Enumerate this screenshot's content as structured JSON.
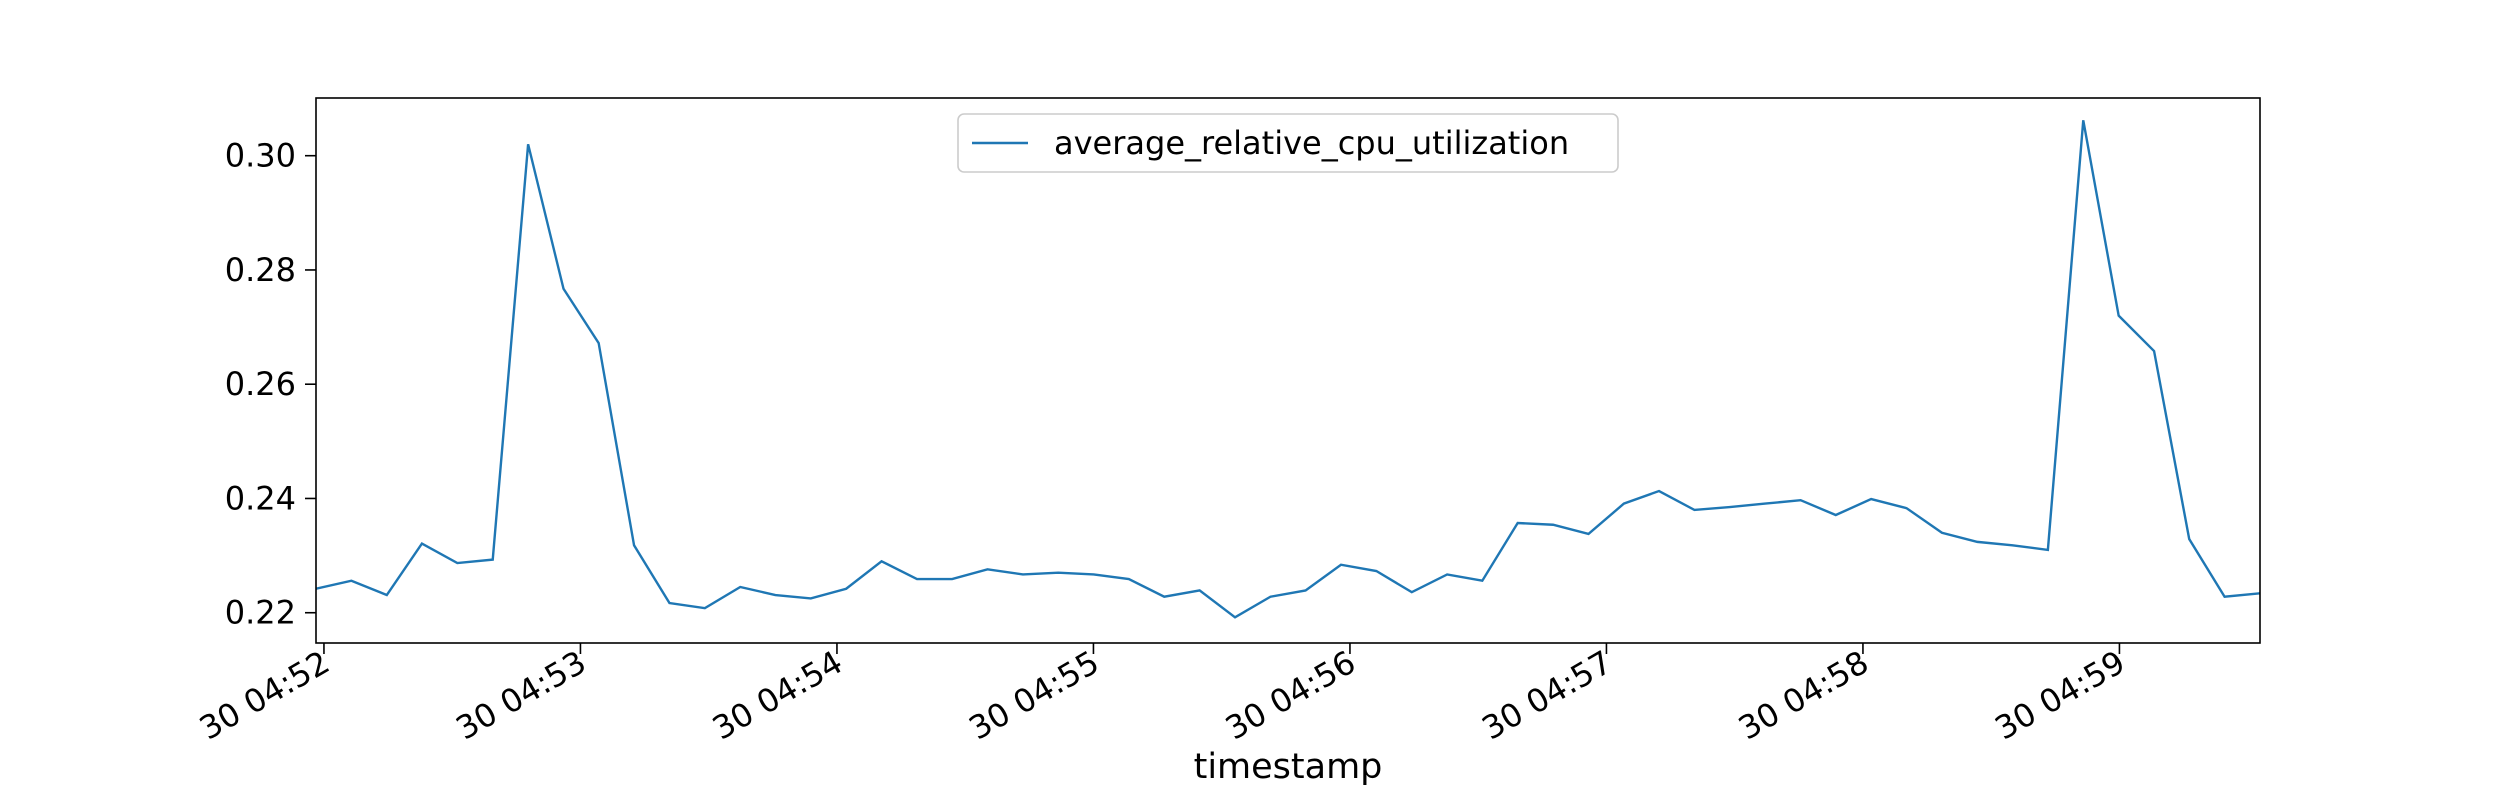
{
  "chart_data": {
    "type": "line",
    "x": [
      51.969,
      52.107,
      52.245,
      52.382,
      52.52,
      52.658,
      52.796,
      52.934,
      53.071,
      53.209,
      53.347,
      53.485,
      53.623,
      53.76,
      53.898,
      54.036,
      54.174,
      54.312,
      54.449,
      54.587,
      54.725,
      54.863,
      55.001,
      55.138,
      55.276,
      55.414,
      55.552,
      55.69,
      55.827,
      55.965,
      56.103,
      56.241,
      56.379,
      56.516,
      56.654,
      56.792,
      56.93,
      57.068,
      57.205,
      57.343,
      57.481,
      57.619,
      57.757,
      57.894,
      58.032,
      58.17,
      58.308,
      58.446,
      58.583,
      58.721,
      58.859,
      58.997,
      59.135,
      59.272,
      59.41,
      59.548
    ],
    "series": [
      {
        "name": "average_relative_cpu_utilization",
        "color": "#1f77b4",
        "values": [
          0.2242,
          0.2256,
          0.2231,
          0.2321,
          0.2287,
          0.2293,
          0.302,
          0.2767,
          0.2672,
          0.2318,
          0.2217,
          0.2208,
          0.2245,
          0.2231,
          0.2225,
          0.2242,
          0.229,
          0.2259,
          0.2259,
          0.2276,
          0.2267,
          0.227,
          0.2267,
          0.2259,
          0.2228,
          0.2239,
          0.2192,
          0.2228,
          0.2239,
          0.2284,
          0.2273,
          0.2236,
          0.2267,
          0.2256,
          0.2357,
          0.2354,
          0.2338,
          0.2391,
          0.2413,
          0.238,
          0.2385,
          0.2391,
          0.2397,
          0.2371,
          0.2399,
          0.2383,
          0.234,
          0.2324,
          0.2318,
          0.231,
          0.3062,
          0.272,
          0.2658,
          0.2329,
          0.2228,
          0.2234
        ]
      }
    ],
    "xlabel": "timestamp",
    "xlim": [
      51.969,
      59.548
    ],
    "xticks": [
      {
        "value": 52,
        "label": "30 04:52"
      },
      {
        "value": 53,
        "label": "30 04:53"
      },
      {
        "value": 54,
        "label": "30 04:54"
      },
      {
        "value": 55,
        "label": "30 04:55"
      },
      {
        "value": 56,
        "label": "30 04:56"
      },
      {
        "value": 57,
        "label": "30 04:57"
      },
      {
        "value": 58,
        "label": "30 04:58"
      },
      {
        "value": 59,
        "label": "30 04:59"
      }
    ],
    "ylim": [
      0.2147,
      0.3101
    ],
    "yticks": [
      0.22,
      0.24,
      0.26,
      0.28,
      {
        "value": 0.3,
        "label": "0.30"
      }
    ],
    "legend": "upper center"
  }
}
